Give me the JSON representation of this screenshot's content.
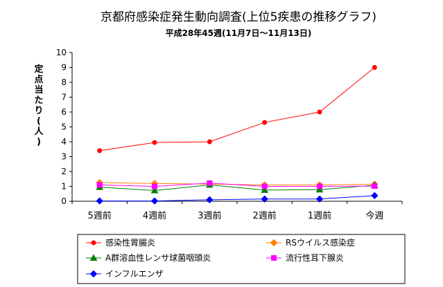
{
  "chart_data": {
    "type": "line",
    "title": "京都府感染症発生動向調査(上位5疾患の推移グラフ)",
    "subtitle": "平成28年45週(11月7日〜11月13日)",
    "ylabel": "定点当たり(人)",
    "xlabel": "",
    "ylim": [
      0,
      10
    ],
    "yticks": [
      "0",
      "1",
      "2",
      "3",
      "4",
      "5",
      "6",
      "7",
      "8",
      "9",
      "10"
    ],
    "grid": false,
    "legend_position": "bottom",
    "categories": [
      "5週前",
      "4週前",
      "3週前",
      "2週前",
      "1週前",
      "今週"
    ],
    "series": [
      {
        "name": "感染性胃腸炎",
        "values": [
          3.4,
          3.95,
          4.0,
          5.3,
          6.0,
          9.0
        ],
        "color": "#ff0000",
        "marker": "circle"
      },
      {
        "name": "RSウイルス感染症",
        "values": [
          1.25,
          1.2,
          1.15,
          1.1,
          1.1,
          1.15
        ],
        "color": "#ff8000",
        "marker": "diamond"
      },
      {
        "name": "A群溶血性レンサ球菌咽頭炎",
        "values": [
          0.95,
          0.72,
          1.1,
          0.75,
          0.78,
          1.08
        ],
        "color": "#008000",
        "marker": "triangle"
      },
      {
        "name": "流行性耳下腺炎",
        "values": [
          1.1,
          1.0,
          1.22,
          1.0,
          1.0,
          1.02
        ],
        "color": "#ff00ff",
        "marker": "square"
      },
      {
        "name": "インフルエンザ",
        "values": [
          0.02,
          0.02,
          0.1,
          0.15,
          0.15,
          0.38
        ],
        "color": "#0000ff",
        "marker": "diamond"
      }
    ]
  }
}
